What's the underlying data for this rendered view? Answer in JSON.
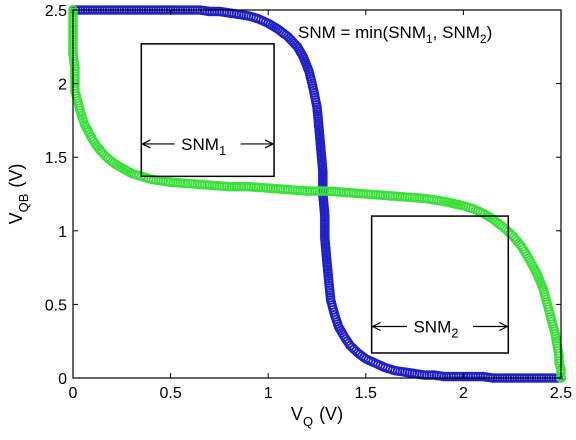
{
  "chart_data": {
    "type": "scatter",
    "xlim": [
      0,
      2.5
    ],
    "ylim": [
      0,
      2.5
    ],
    "xticks": [
      "0",
      "0.5",
      "1",
      "1.5",
      "2",
      "2.5"
    ],
    "yticks": [
      "0",
      "0.5",
      "1",
      "1.5",
      "2",
      "2.5"
    ],
    "xlabel": {
      "main": "V",
      "sub": "Q",
      "unit": "(V)"
    },
    "ylabel": {
      "main": "V",
      "sub": "QB",
      "unit": "(V)"
    },
    "grid": false,
    "series": [
      {
        "color": "#2020c8",
        "marker": "circle-open",
        "x": [
          0,
          0.05,
          0.1,
          0.15,
          0.2,
          0.25,
          0.3,
          0.35,
          0.4,
          0.45,
          0.5,
          0.55,
          0.6,
          0.65,
          0.7,
          0.75,
          0.8,
          0.85,
          0.9,
          0.95,
          1.0,
          1.05,
          1.1,
          1.15,
          1.18,
          1.21,
          1.23,
          1.25,
          1.26,
          1.27,
          1.28,
          1.28,
          1.29,
          1.29,
          1.3,
          1.31,
          1.32,
          1.34,
          1.36,
          1.39,
          1.42,
          1.46,
          1.5,
          1.55,
          1.6,
          1.65,
          1.7,
          1.75,
          1.8,
          1.85,
          1.9,
          1.95,
          2.0,
          2.05,
          2.1,
          2.15,
          2.2,
          2.25,
          2.3,
          2.35,
          2.4,
          2.45,
          2.5
        ],
        "y": [
          2.5,
          2.5,
          2.5,
          2.5,
          2.5,
          2.5,
          2.5,
          2.5,
          2.5,
          2.5,
          2.5,
          2.5,
          2.5,
          2.5,
          2.49,
          2.49,
          2.48,
          2.47,
          2.46,
          2.44,
          2.41,
          2.37,
          2.32,
          2.25,
          2.18,
          2.08,
          1.97,
          1.84,
          1.7,
          1.55,
          1.4,
          1.25,
          1.1,
          0.95,
          0.8,
          0.66,
          0.53,
          0.43,
          0.35,
          0.28,
          0.22,
          0.17,
          0.13,
          0.1,
          0.07,
          0.05,
          0.04,
          0.03,
          0.02,
          0.02,
          0.01,
          0.01,
          0.01,
          0.01,
          0.01,
          0.0,
          0.0,
          0.0,
          0.0,
          0.0,
          0.0,
          0.0,
          0.0
        ]
      },
      {
        "color": "#3ce03c",
        "marker": "circle-open",
        "x": [
          0.0,
          0.0,
          0.0,
          0.0,
          0.01,
          0.01,
          0.01,
          0.02,
          0.03,
          0.04,
          0.05,
          0.06,
          0.08,
          0.1,
          0.12,
          0.15,
          0.18,
          0.22,
          0.26,
          0.3,
          0.35,
          0.4,
          0.5,
          0.6,
          0.7,
          0.8,
          0.9,
          1.0,
          1.1,
          1.2,
          1.3,
          1.4,
          1.5,
          1.6,
          1.7,
          1.8,
          1.9,
          2.0,
          2.05,
          2.1,
          2.15,
          2.2,
          2.25,
          2.3,
          2.34,
          2.38,
          2.41,
          2.43,
          2.45,
          2.47,
          2.48,
          2.49,
          2.49,
          2.5,
          2.5,
          2.5,
          2.5
        ],
        "y": [
          2.5,
          2.4,
          2.3,
          2.2,
          2.1,
          2.0,
          1.95,
          1.9,
          1.85,
          1.8,
          1.76,
          1.72,
          1.67,
          1.62,
          1.58,
          1.53,
          1.49,
          1.45,
          1.42,
          1.39,
          1.37,
          1.35,
          1.33,
          1.32,
          1.31,
          1.3,
          1.3,
          1.29,
          1.28,
          1.27,
          1.27,
          1.26,
          1.25,
          1.24,
          1.23,
          1.22,
          1.2,
          1.17,
          1.15,
          1.12,
          1.08,
          1.03,
          0.97,
          0.89,
          0.8,
          0.7,
          0.6,
          0.5,
          0.4,
          0.3,
          0.22,
          0.15,
          0.1,
          0.06,
          0.03,
          0.01,
          0.0
        ]
      }
    ],
    "annotations": {
      "formula": {
        "prefix": "SNM = min(SNM",
        "sub1": "1",
        "mid": ", SNM",
        "sub2": "2",
        "suffix": ")"
      },
      "box1": {
        "x0": 0.35,
        "y0": 1.37,
        "x1": 1.03,
        "y1": 2.27,
        "label": "SNM",
        "sub": "1",
        "label_y": 1.59
      },
      "box2": {
        "x0": 1.53,
        "y0": 0.17,
        "x1": 2.23,
        "y1": 1.1,
        "label": "SNM",
        "sub": "2",
        "label_y": 0.35
      }
    }
  }
}
